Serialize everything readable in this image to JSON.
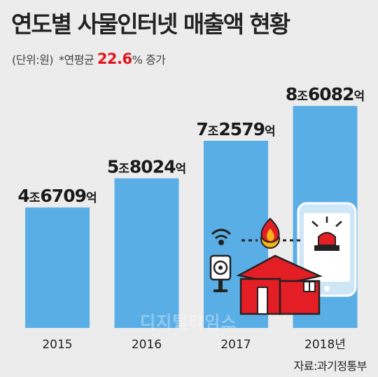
{
  "header": {
    "title": "연도별 사물인터넷 매출액 현황",
    "unit_note": "(단위:원)",
    "growth_prefix": "*연평균",
    "growth_value": "22.6",
    "growth_pct": "%",
    "growth_suffix": "증가"
  },
  "footer": {
    "source": "자료:과기정통부",
    "watermark": "디지털타임스"
  },
  "colors": {
    "bar": "#5aaee6",
    "house": "#e31e24",
    "background": "#ececec",
    "highlight": "#e0161d"
  },
  "chart_data": {
    "type": "bar",
    "title": "연도별 사물인터넷 매출액 현황",
    "categories": [
      "2015",
      "2016",
      "2017",
      "2018년"
    ],
    "values": [
      4.6709,
      5.8024,
      7.2579,
      8.6082
    ],
    "value_unit": "조원",
    "labels": [
      {
        "jo": "4",
        "jo_unit": "조",
        "eok": "6709",
        "eok_unit": "억"
      },
      {
        "jo": "5",
        "jo_unit": "조",
        "eok": "8024",
        "eok_unit": "억"
      },
      {
        "jo": "7",
        "jo_unit": "조",
        "eok": "2579",
        "eok_unit": "억"
      },
      {
        "jo": "8",
        "jo_unit": "조",
        "eok": "6082",
        "eok_unit": "억"
      }
    ],
    "ylim": [
      0,
      10
    ],
    "grid": false,
    "legend": "none"
  }
}
